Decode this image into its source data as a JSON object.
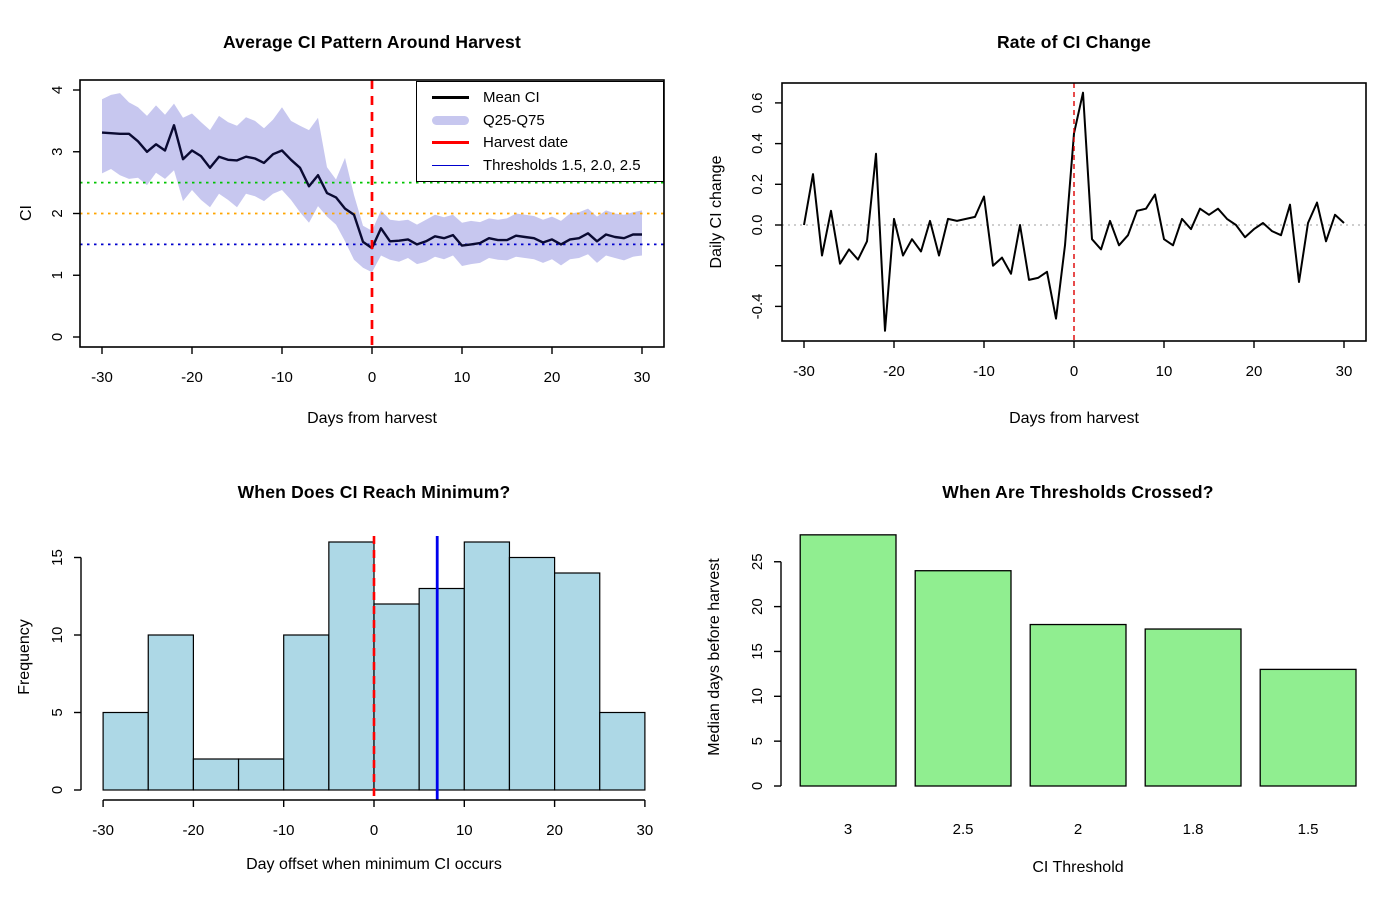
{
  "figure": {
    "background": "#ffffff"
  },
  "chart_data": [
    {
      "type": "line",
      "title": "Average CI Pattern Around Harvest",
      "xlabel": "Days from harvest",
      "ylabel": "CI",
      "xlim": [
        -30,
        30
      ],
      "ylim": [
        0,
        4
      ],
      "xticks": [
        -30,
        -20,
        -10,
        0,
        10,
        20,
        30
      ],
      "yticks": [
        0,
        1,
        2,
        3,
        4
      ],
      "x": [
        -30,
        -29,
        -28,
        -27,
        -26,
        -25,
        -24,
        -23,
        -22,
        -21,
        -20,
        -19,
        -18,
        -17,
        -16,
        -15,
        -14,
        -13,
        -12,
        -11,
        -10,
        -9,
        -8,
        -7,
        -6,
        -5,
        -4,
        -3,
        -2,
        -1,
        0,
        1,
        2,
        3,
        4,
        5,
        6,
        7,
        8,
        9,
        10,
        11,
        12,
        13,
        14,
        15,
        16,
        17,
        18,
        19,
        20,
        21,
        22,
        23,
        24,
        25,
        26,
        27,
        28,
        29,
        30
      ],
      "series": [
        {
          "name": "Mean CI",
          "color": "#0a0a32",
          "values": [
            3.31,
            3.3,
            3.29,
            3.29,
            3.17,
            3.0,
            3.12,
            3.02,
            3.43,
            2.88,
            3.02,
            2.93,
            2.74,
            2.92,
            2.87,
            2.86,
            2.92,
            2.89,
            2.82,
            2.96,
            3.02,
            2.87,
            2.74,
            2.44,
            2.62,
            2.33,
            2.26,
            2.08,
            1.98,
            1.54,
            1.44,
            1.76,
            1.55,
            1.56,
            1.58,
            1.5,
            1.55,
            1.63,
            1.6,
            1.65,
            1.48,
            1.5,
            1.52,
            1.6,
            1.57,
            1.57,
            1.64,
            1.62,
            1.6,
            1.53,
            1.58,
            1.5,
            1.58,
            1.6,
            1.68,
            1.55,
            1.66,
            1.62,
            1.6,
            1.66,
            1.66
          ]
        }
      ],
      "ribbon": {
        "name": "Q25-Q75",
        "color": "#c7c7ef",
        "upper": [
          3.85,
          3.92,
          3.95,
          3.8,
          3.72,
          3.58,
          3.75,
          3.6,
          3.78,
          3.55,
          3.62,
          3.48,
          3.35,
          3.58,
          3.48,
          3.42,
          3.56,
          3.5,
          3.38,
          3.52,
          3.72,
          3.5,
          3.42,
          3.35,
          3.55,
          2.75,
          2.55,
          2.9,
          2.3,
          1.8,
          1.72,
          2.05,
          1.9,
          1.88,
          1.9,
          1.82,
          1.9,
          1.98,
          1.94,
          1.98,
          1.85,
          1.88,
          1.86,
          1.92,
          1.9,
          1.92,
          2.0,
          1.98,
          1.96,
          1.9,
          1.95,
          1.88,
          2.0,
          2.02,
          2.08,
          1.95,
          2.05,
          2.0,
          1.98,
          2.02,
          2.05
        ],
        "lower": [
          2.65,
          2.72,
          2.62,
          2.56,
          2.58,
          2.46,
          2.66,
          2.56,
          2.7,
          2.2,
          2.38,
          2.22,
          2.1,
          2.32,
          2.22,
          2.1,
          2.32,
          2.28,
          2.2,
          2.32,
          2.38,
          2.22,
          2.02,
          1.85,
          2.12,
          1.95,
          1.82,
          1.55,
          1.25,
          1.12,
          1.05,
          1.32,
          1.25,
          1.22,
          1.28,
          1.18,
          1.22,
          1.3,
          1.26,
          1.32,
          1.15,
          1.18,
          1.2,
          1.28,
          1.25,
          1.24,
          1.3,
          1.28,
          1.26,
          1.2,
          1.26,
          1.16,
          1.26,
          1.28,
          1.34,
          1.2,
          1.32,
          1.28,
          1.24,
          1.3,
          1.32
        ]
      },
      "thresholds": [
        {
          "value": 2.5,
          "color": "#00c400"
        },
        {
          "value": 2.0,
          "color": "#ffa500"
        },
        {
          "value": 1.5,
          "color": "#0000cd"
        }
      ],
      "harvest_line": {
        "x": 0,
        "color": "#ff0000",
        "style": "dashed"
      },
      "legend": {
        "position": "top-right",
        "items": [
          {
            "label": "Mean CI",
            "color": "#000000",
            "swatch": "line"
          },
          {
            "label": "Q25-Q75",
            "color": "#c7c7ef",
            "swatch": "band"
          },
          {
            "label": "Harvest date",
            "color": "#ff0000",
            "swatch": "line"
          },
          {
            "label": "Thresholds 1.5, 2.0, 2.5",
            "color": "#0000cd",
            "swatch": "thin-line"
          }
        ]
      }
    },
    {
      "type": "line",
      "title": "Rate of CI Change",
      "xlabel": "Days from harvest",
      "ylabel": "Daily CI change",
      "xlim": [
        -30,
        30
      ],
      "ylim": [
        -0.52,
        0.65
      ],
      "xticks": [
        -30,
        -20,
        -10,
        0,
        10,
        20,
        30
      ],
      "yticks": [
        {
          "value": 0.6,
          "label": "0.6"
        },
        {
          "value": 0.4,
          "label": "0.4"
        },
        {
          "value": 0.2,
          "label": "0.2"
        },
        {
          "value": 0.0,
          "label": "0.0"
        },
        {
          "value": -0.2,
          "label": ""
        },
        {
          "value": -0.4,
          "label": "-0.4"
        }
      ],
      "x": [
        -30,
        -29,
        -28,
        -27,
        -26,
        -25,
        -24,
        -23,
        -22,
        -21,
        -20,
        -19,
        -18,
        -17,
        -16,
        -15,
        -14,
        -13,
        -12,
        -11,
        -10,
        -9,
        -8,
        -7,
        -6,
        -5,
        -4,
        -3,
        -2,
        -1,
        0,
        1,
        2,
        3,
        4,
        5,
        6,
        7,
        8,
        9,
        10,
        11,
        12,
        13,
        14,
        15,
        16,
        17,
        18,
        19,
        20,
        21,
        22,
        23,
        24,
        25,
        26,
        27,
        28,
        29,
        30
      ],
      "series": [
        {
          "name": "Daily CI change",
          "color": "#000000",
          "values": [
            0.0,
            0.25,
            -0.15,
            0.07,
            -0.19,
            -0.12,
            -0.17,
            -0.08,
            0.35,
            -0.52,
            0.03,
            -0.15,
            -0.07,
            -0.13,
            0.02,
            -0.15,
            0.03,
            0.02,
            0.03,
            0.04,
            0.14,
            -0.2,
            -0.16,
            -0.24,
            0.0,
            -0.27,
            -0.26,
            -0.23,
            -0.46,
            -0.1,
            0.45,
            0.65,
            -0.07,
            -0.12,
            0.02,
            -0.1,
            -0.05,
            0.07,
            0.08,
            0.15,
            -0.07,
            -0.1,
            0.03,
            -0.02,
            0.08,
            0.05,
            0.08,
            0.03,
            0.0,
            -0.06,
            -0.02,
            0.01,
            -0.03,
            -0.05,
            0.1,
            -0.28,
            0.01,
            0.11,
            -0.08,
            0.05,
            0.01
          ]
        }
      ],
      "zero_line": {
        "y": 0,
        "color": "#bebebe",
        "style": "dotted"
      },
      "harvest_line": {
        "x": 0,
        "color": "#dd0000",
        "style": "dashed"
      }
    },
    {
      "type": "histogram",
      "title": "When Does CI Reach Minimum?",
      "xlabel": "Day offset when minimum CI occurs",
      "ylabel": "Frequency",
      "xlim": [
        -30,
        30
      ],
      "ylim": [
        0,
        16
      ],
      "xticks": [
        -30,
        -20,
        -10,
        0,
        10,
        20,
        30
      ],
      "yticks": [
        0,
        5,
        10,
        15
      ],
      "bin_breaks": [
        -30,
        -25,
        -20,
        -15,
        -10,
        -5,
        0,
        5,
        10,
        15,
        20,
        25,
        30
      ],
      "counts": [
        5,
        10,
        2,
        2,
        10,
        16,
        12,
        13,
        16,
        15,
        14,
        5
      ],
      "bar_fill": "#add8e6",
      "bar_stroke": "#000000",
      "harvest_line": {
        "x": 0,
        "color": "#ff0000",
        "style": "dashed"
      },
      "median_line": {
        "x": 7,
        "color": "#0000ee",
        "style": "solid"
      }
    },
    {
      "type": "bar",
      "title": "When Are Thresholds Crossed?",
      "xlabel": "CI Threshold",
      "ylabel": "Median days before harvest",
      "categories": [
        "3",
        "2.5",
        "2",
        "1.8",
        "1.5"
      ],
      "values": [
        28,
        24,
        18,
        17.5,
        13
      ],
      "ylim": [
        0,
        28
      ],
      "yticks": [
        0,
        5,
        10,
        15,
        20,
        25
      ],
      "bar_fill": "#90ee90",
      "bar_stroke": "#000000"
    }
  ]
}
